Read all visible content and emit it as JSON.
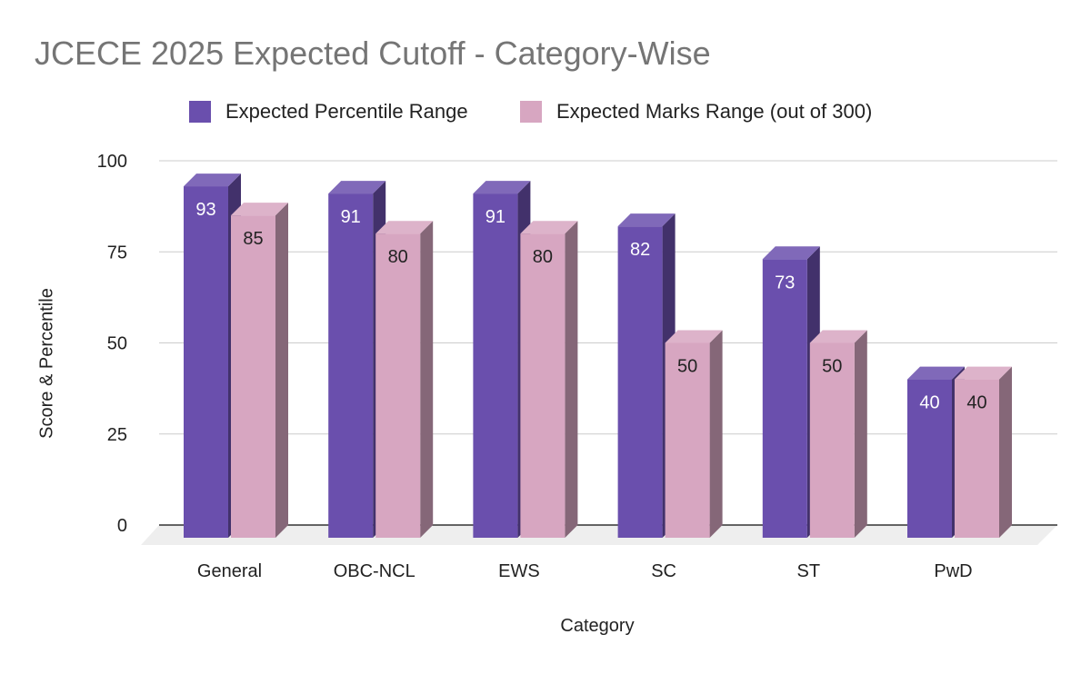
{
  "chart_data": {
    "type": "bar",
    "title": "JCECE 2025 Expected Cutoff - Category-Wise",
    "xlabel": "Category",
    "ylabel": "Score & Percentile",
    "categories": [
      "General",
      "OBC-NCL",
      "EWS",
      "SC",
      "ST",
      "PwD"
    ],
    "series": [
      {
        "name": "Expected Percentile Range",
        "values": [
          93,
          91,
          91,
          82,
          73,
          40
        ],
        "color": "#6a4fad"
      },
      {
        "name": "Expected Marks Range (out of 300)",
        "values": [
          85,
          80,
          80,
          50,
          50,
          40
        ],
        "color": "#d7a6c1"
      }
    ],
    "ylim": [
      0,
      100
    ],
    "yticks": [
      0,
      25,
      50,
      75,
      100
    ],
    "grid": true,
    "legend_position": "top",
    "style": "3d-column"
  }
}
